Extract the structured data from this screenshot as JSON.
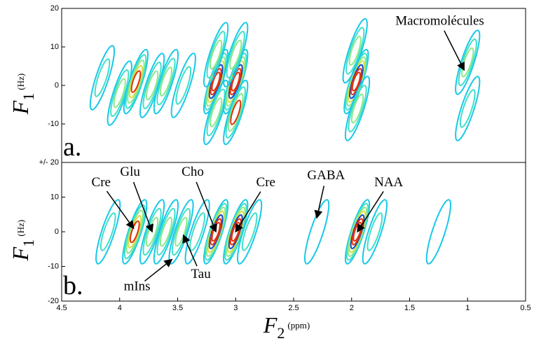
{
  "chart_data": [
    {
      "type": "contour",
      "panel_label": "a.",
      "ylabel": {
        "symbol": "F",
        "subscript": "1",
        "unit": "(Hz)"
      },
      "xlim": [
        4.5,
        0.5
      ],
      "ylim": [
        -20,
        20
      ],
      "yticks": [
        20,
        10,
        0,
        -10
      ],
      "colormap": [
        "#19c9e8",
        "#3fe0c8",
        "#8be88a",
        "#d8e040",
        "#f0a020",
        "#e03010",
        "#1048d0"
      ],
      "peaks": [
        {
          "x": 4.15,
          "y": 2,
          "intensity": 2
        },
        {
          "x": 4.0,
          "y": -2,
          "intensity": 3
        },
        {
          "x": 3.86,
          "y": 1,
          "intensity": 5
        },
        {
          "x": 3.72,
          "y": 0,
          "intensity": 3
        },
        {
          "x": 3.6,
          "y": 1,
          "intensity": 3
        },
        {
          "x": 3.45,
          "y": 0,
          "intensity": 2
        },
        {
          "x": 3.17,
          "y": 1,
          "intensity": 7
        },
        {
          "x": 3.17,
          "y": 8,
          "intensity": 3
        },
        {
          "x": 3.17,
          "y": -7,
          "intensity": 3
        },
        {
          "x": 3.0,
          "y": 1,
          "intensity": 7
        },
        {
          "x": 3.0,
          "y": 8,
          "intensity": 3
        },
        {
          "x": 3.0,
          "y": -7,
          "intensity": 4
        },
        {
          "x": 1.96,
          "y": 1,
          "intensity": 7
        },
        {
          "x": 1.97,
          "y": 9,
          "intensity": 3
        },
        {
          "x": 1.95,
          "y": -6,
          "intensity": 3
        },
        {
          "x": 1.0,
          "y": 6,
          "intensity": 3
        },
        {
          "x": 1.0,
          "y": -6,
          "intensity": 2
        }
      ],
      "annotations": [
        {
          "text": "Macromolécules",
          "x": 1.24,
          "y": 16.5,
          "xy": [
            1.03,
            4
          ]
        }
      ]
    },
    {
      "type": "contour",
      "panel_label": "b.",
      "ylabel": {
        "symbol": "F",
        "subscript": "1",
        "unit": "(Hz)"
      },
      "xlabel": {
        "symbol": "F",
        "subscript": "2",
        "unit": "(ppm)"
      },
      "xlim": [
        4.5,
        0.5
      ],
      "ylim": [
        -20,
        20
      ],
      "yticks": [
        {
          "value": 20,
          "label": "+/- 20"
        },
        10,
        0,
        -10,
        -20
      ],
      "xticks": [
        4.5,
        4,
        3.5,
        3,
        2.5,
        2,
        1.5,
        1,
        0.5
      ],
      "colormap": [
        "#19c9e8",
        "#3fe0c8",
        "#8be88a",
        "#d8e040",
        "#f0a020",
        "#e03010",
        "#1048d0"
      ],
      "peaks": [
        {
          "x": 4.1,
          "y": 0,
          "intensity": 2
        },
        {
          "x": 3.87,
          "y": 0,
          "intensity": 5
        },
        {
          "x": 3.72,
          "y": 0,
          "intensity": 3
        },
        {
          "x": 3.6,
          "y": 0,
          "intensity": 3
        },
        {
          "x": 3.47,
          "y": 0,
          "intensity": 3
        },
        {
          "x": 3.33,
          "y": 0,
          "intensity": 2
        },
        {
          "x": 3.17,
          "y": 0,
          "intensity": 7
        },
        {
          "x": 3.0,
          "y": 0,
          "intensity": 7
        },
        {
          "x": 2.88,
          "y": 0,
          "intensity": 2
        },
        {
          "x": 2.3,
          "y": 0,
          "intensity": 1
        },
        {
          "x": 1.95,
          "y": 0,
          "intensity": 7
        },
        {
          "x": 1.8,
          "y": 0,
          "intensity": 2
        },
        {
          "x": 1.25,
          "y": 0,
          "intensity": 1
        }
      ],
      "annotations": [
        {
          "text": "Cre",
          "x": 4.16,
          "y": 14,
          "xy": [
            3.88,
            1
          ]
        },
        {
          "text": "Glu",
          "x": 3.91,
          "y": 17,
          "xy": [
            3.72,
            0
          ]
        },
        {
          "text": "Cho",
          "x": 3.37,
          "y": 17,
          "xy": [
            3.17,
            0
          ]
        },
        {
          "text": "Cre",
          "x": 2.74,
          "y": 14,
          "xy": [
            3.0,
            0
          ]
        },
        {
          "text": "GABA",
          "x": 2.22,
          "y": 16,
          "xy": [
            2.3,
            4
          ]
        },
        {
          "text": "NAA",
          "x": 1.68,
          "y": 14,
          "xy": [
            1.95,
            0
          ]
        },
        {
          "text": "mIns",
          "x": 3.85,
          "y": -16,
          "xy": [
            3.55,
            -8
          ]
        },
        {
          "text": "Tau",
          "x": 3.3,
          "y": -12.5,
          "xy": [
            3.45,
            -1
          ]
        }
      ]
    }
  ]
}
